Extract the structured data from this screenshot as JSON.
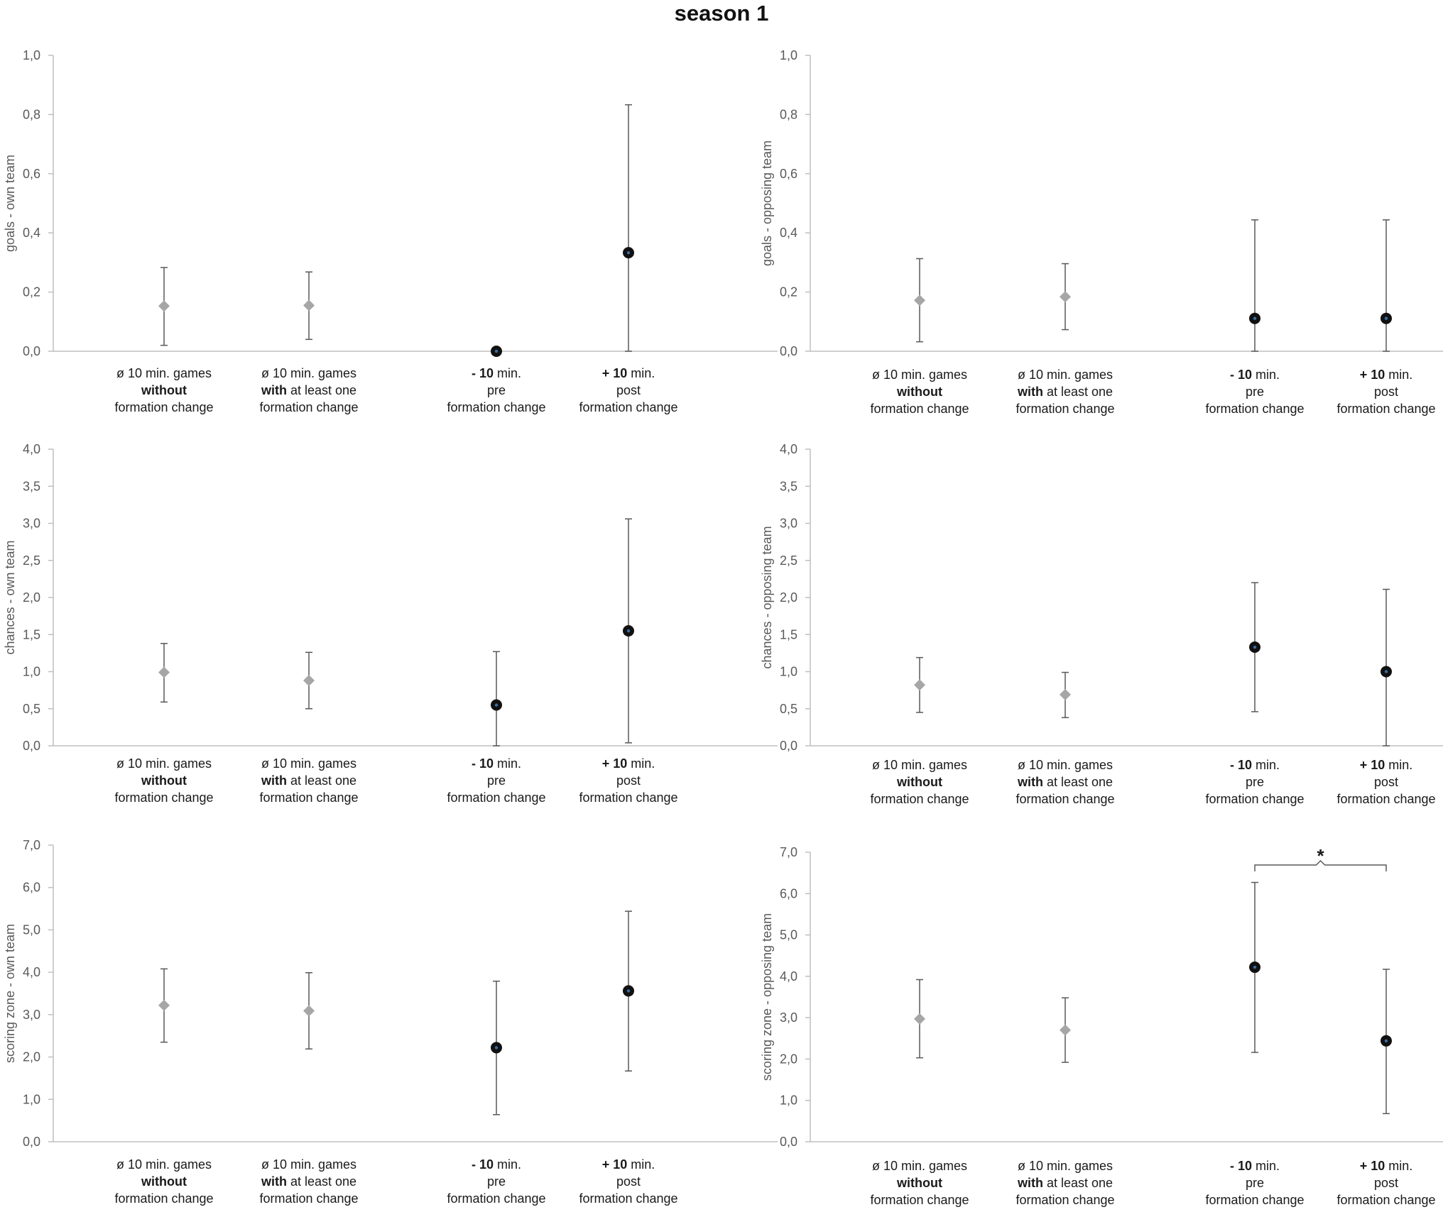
{
  "title": "season 1",
  "colors": {
    "axis": "#bfbfbf",
    "tick_text": "#595959",
    "label_text": "#1a1a1a",
    "whisker": "#595959",
    "marker_grey": "#a6a6a6",
    "marker_black": "#111111",
    "marker_dot": "#3a6ea5"
  },
  "chart_data": [
    {
      "id": "goals-own",
      "type": "scatter",
      "ylabel": "goals - own team",
      "ylim": [
        0,
        1.0
      ],
      "yticks": [
        "0,0",
        "0,2",
        "0,4",
        "0,6",
        "0,8",
        "1,0"
      ],
      "categories": [
        {
          "bold": "ø 10 min. games",
          "l2_bold": "without",
          "l2_rest": "",
          "l3": "formation change"
        },
        {
          "bold": "ø 10 min. games",
          "l2_bold": "with",
          "l2_rest": " at least one",
          "l3": "formation change"
        },
        {
          "bold": "- 10",
          "rest": " min.",
          "l2": "pre",
          "l3": "formation change"
        },
        {
          "bold": "+ 10",
          "rest": " min.",
          "l2": "post",
          "l3": "formation change"
        }
      ],
      "points": [
        {
          "marker": "diamond",
          "mean": 0.153,
          "low": 0.02,
          "high": 0.283
        },
        {
          "marker": "diamond",
          "mean": 0.155,
          "low": 0.04,
          "high": 0.268
        },
        {
          "marker": "circle",
          "mean": 0.0,
          "low": 0.0,
          "high": 0.0
        },
        {
          "marker": "circle",
          "mean": 0.333,
          "low": 0.0,
          "high": 0.833
        }
      ]
    },
    {
      "id": "goals-opp",
      "type": "scatter",
      "ylabel": "goals - opposing team",
      "ylim": [
        0,
        1.0
      ],
      "yticks": [
        "0,0",
        "0,2",
        "0,4",
        "0,6",
        "0,8",
        "1,0"
      ],
      "categories": [
        {
          "bold": "ø 10 min. games",
          "l2_bold": "without",
          "l2_rest": "",
          "l3": "formation change"
        },
        {
          "bold": "ø 10 min. games",
          "l2_bold": "with",
          "l2_rest": " at least one",
          "l3": "formation change"
        },
        {
          "bold": "- 10",
          "rest": " min.",
          "l2": "pre",
          "l3": "formation change"
        },
        {
          "bold": "+ 10",
          "rest": " min.",
          "l2": "post",
          "l3": "formation change"
        }
      ],
      "points": [
        {
          "marker": "diamond",
          "mean": 0.172,
          "low": 0.032,
          "high": 0.313
        },
        {
          "marker": "diamond",
          "mean": 0.184,
          "low": 0.073,
          "high": 0.296
        },
        {
          "marker": "circle",
          "mean": 0.111,
          "low": 0.0,
          "high": 0.444
        },
        {
          "marker": "circle",
          "mean": 0.111,
          "low": 0.0,
          "high": 0.444
        }
      ]
    },
    {
      "id": "chances-own",
      "type": "scatter",
      "ylabel": "chances - own team",
      "ylim": [
        0,
        4.0
      ],
      "yticks": [
        "0,0",
        "0,5",
        "1,0",
        "1,5",
        "2,0",
        "2,5",
        "3,0",
        "3,5",
        "4,0"
      ],
      "categories": [
        {
          "bold": "ø 10 min. games",
          "l2_bold": "without",
          "l2_rest": "",
          "l3": "formation change"
        },
        {
          "bold": "ø 10 min. games",
          "l2_bold": "with",
          "l2_rest": " at least one",
          "l3": "formation change"
        },
        {
          "bold": "- 10",
          "rest": " min.",
          "l2": "pre",
          "l3": "formation change"
        },
        {
          "bold": "+ 10",
          "rest": " min.",
          "l2": "post",
          "l3": "formation change"
        }
      ],
      "points": [
        {
          "marker": "diamond",
          "mean": 0.99,
          "low": 0.59,
          "high": 1.38
        },
        {
          "marker": "diamond",
          "mean": 0.88,
          "low": 0.5,
          "high": 1.26
        },
        {
          "marker": "circle",
          "mean": 0.55,
          "low": 0.0,
          "high": 1.27
        },
        {
          "marker": "circle",
          "mean": 1.55,
          "low": 0.04,
          "high": 3.06
        }
      ]
    },
    {
      "id": "chances-opp",
      "type": "scatter",
      "ylabel": "chances - opposing team",
      "ylim": [
        0,
        4.0
      ],
      "yticks": [
        "0,0",
        "0,5",
        "1,0",
        "1,5",
        "2,0",
        "2,5",
        "3,0",
        "3,5",
        "4,0"
      ],
      "categories": [
        {
          "bold": "ø 10 min. games",
          "l2_bold": "without",
          "l2_rest": "",
          "l3": "formation change"
        },
        {
          "bold": "ø 10 min. games",
          "l2_bold": "with",
          "l2_rest": " at least one",
          "l3": "formation change"
        },
        {
          "bold": "- 10",
          "rest": " min.",
          "l2": "pre",
          "l3": "formation change"
        },
        {
          "bold": "+ 10",
          "rest": " min.",
          "l2": "post",
          "l3": "formation change"
        }
      ],
      "points": [
        {
          "marker": "diamond",
          "mean": 0.82,
          "low": 0.45,
          "high": 1.19
        },
        {
          "marker": "diamond",
          "mean": 0.69,
          "low": 0.38,
          "high": 0.99
        },
        {
          "marker": "circle",
          "mean": 1.33,
          "low": 0.46,
          "high": 2.2
        },
        {
          "marker": "circle",
          "mean": 1.0,
          "low": 0.0,
          "high": 2.11
        }
      ]
    },
    {
      "id": "scoring-own",
      "type": "scatter",
      "ylabel": "scoring zone - own team",
      "ylim": [
        0,
        7.0
      ],
      "yticks": [
        "0,0",
        "1,0",
        "2,0",
        "3,0",
        "4,0",
        "5,0",
        "6,0",
        "7,0"
      ],
      "categories": [
        {
          "bold": "ø 10 min. games",
          "l2_bold": "without",
          "l2_rest": "",
          "l3": "formation change"
        },
        {
          "bold": "ø 10 min. games",
          "l2_bold": "with",
          "l2_rest": " at least one",
          "l3": "formation change"
        },
        {
          "bold": "- 10",
          "rest": " min.",
          "l2": "pre",
          "l3": "formation change"
        },
        {
          "bold": "+ 10",
          "rest": " min.",
          "l2": "post",
          "l3": "formation change"
        }
      ],
      "points": [
        {
          "marker": "diamond",
          "mean": 3.22,
          "low": 2.35,
          "high": 4.08
        },
        {
          "marker": "diamond",
          "mean": 3.09,
          "low": 2.19,
          "high": 3.99
        },
        {
          "marker": "circle",
          "mean": 2.22,
          "low": 0.64,
          "high": 3.79
        },
        {
          "marker": "circle",
          "mean": 3.56,
          "low": 1.67,
          "high": 5.44
        }
      ]
    },
    {
      "id": "scoring-opp",
      "type": "scatter",
      "ylabel": "scoring zone - opposing team",
      "ylim": [
        0,
        7.0
      ],
      "yticks": [
        "0,0",
        "1,0",
        "2,0",
        "3,0",
        "4,0",
        "5,0",
        "6,0",
        "7,0"
      ],
      "categories": [
        {
          "bold": "ø 10 min. games",
          "l2_bold": "without",
          "l2_rest": "",
          "l3": "formation change"
        },
        {
          "bold": "ø 10 min. games",
          "l2_bold": "with",
          "l2_rest": " at least one",
          "l3": "formation change"
        },
        {
          "bold": "- 10",
          "rest": " min.",
          "l2": "pre",
          "l3": "formation change"
        },
        {
          "bold": "+ 10",
          "rest": " min.",
          "l2": "post",
          "l3": "formation change"
        }
      ],
      "points": [
        {
          "marker": "diamond",
          "mean": 2.97,
          "low": 2.03,
          "high": 3.92
        },
        {
          "marker": "diamond",
          "mean": 2.7,
          "low": 1.92,
          "high": 3.48
        },
        {
          "marker": "circle",
          "mean": 4.22,
          "low": 2.16,
          "high": 6.27
        },
        {
          "marker": "circle",
          "mean": 2.44,
          "low": 0.68,
          "high": 4.17
        }
      ],
      "significance": {
        "from": 2,
        "to": 3,
        "label": "*"
      }
    }
  ]
}
